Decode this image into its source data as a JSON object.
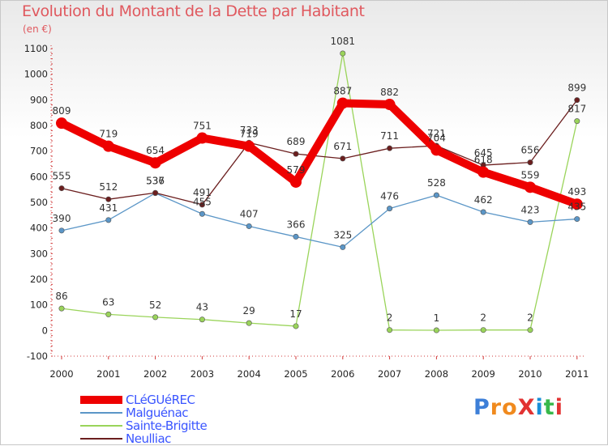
{
  "title": "Evolution du Montant de la Dette par Habitant",
  "subtitle": "(en €)",
  "logo": {
    "text": "ProXiti",
    "letters": [
      {
        "char": "P",
        "color": "#3d7fd8"
      },
      {
        "char": "r",
        "color": "#f08a1e"
      },
      {
        "char": "o",
        "color": "#f08a1e"
      },
      {
        "char": "X",
        "color": "#e23333"
      },
      {
        "char": "i",
        "color": "#1a8fd8"
      },
      {
        "char": "t",
        "color": "#38b84a"
      },
      {
        "char": "i",
        "color": "#e23333"
      }
    ]
  },
  "chart_data": {
    "type": "line",
    "title": "Evolution du Montant de la Dette par Habitant",
    "subtitle": "(en €)",
    "xlabel": "",
    "ylabel": "",
    "x": [
      "2000",
      "2001",
      "2002",
      "2003",
      "2004",
      "2005",
      "2006",
      "2007",
      "2008",
      "2009",
      "2010",
      "2011"
    ],
    "ylim": [
      -100,
      1100
    ],
    "yticks": [
      -100,
      0,
      100,
      200,
      300,
      400,
      500,
      600,
      700,
      800,
      900,
      1000,
      1100
    ],
    "grid": false,
    "legend_position": "bottom-left",
    "series": [
      {
        "name": "CLéGUéREC",
        "color": "#ee0000",
        "values": [
          809,
          719,
          654,
          751,
          719,
          579,
          887,
          882,
          704,
          618,
          559,
          493
        ]
      },
      {
        "name": "Malguénac",
        "color": "#5b96c7",
        "values": [
          390,
          431,
          536,
          455,
          407,
          366,
          325,
          476,
          528,
          462,
          423,
          435
        ]
      },
      {
        "name": "Sainte-Brigitte",
        "color": "#9ad45a",
        "values": [
          86,
          63,
          52,
          43,
          29,
          17,
          1081,
          2,
          1,
          2,
          2,
          817
        ]
      },
      {
        "name": "Neulliac",
        "color": "#6b1e1e",
        "values": [
          555,
          512,
          537,
          491,
          733,
          689,
          671,
          711,
          721,
          645,
          656,
          899
        ]
      }
    ]
  }
}
